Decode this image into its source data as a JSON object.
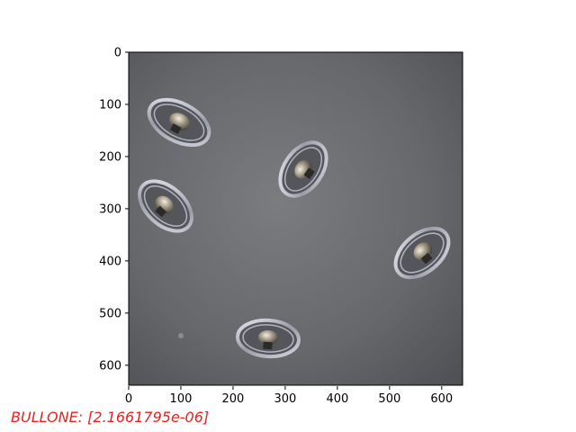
{
  "figure": {
    "caption": "BULLONE: [2.1661795e-06]",
    "caption_color": "#e8231f",
    "image": {
      "description_icon": "photo-of-nose-pads",
      "background_color": "#6a6c6f"
    },
    "axes": {
      "x_ticks": [
        "0",
        "100",
        "200",
        "300",
        "400",
        "500",
        "600"
      ],
      "y_ticks": [
        "0",
        "100",
        "200",
        "300",
        "400",
        "500",
        "600"
      ]
    }
  }
}
